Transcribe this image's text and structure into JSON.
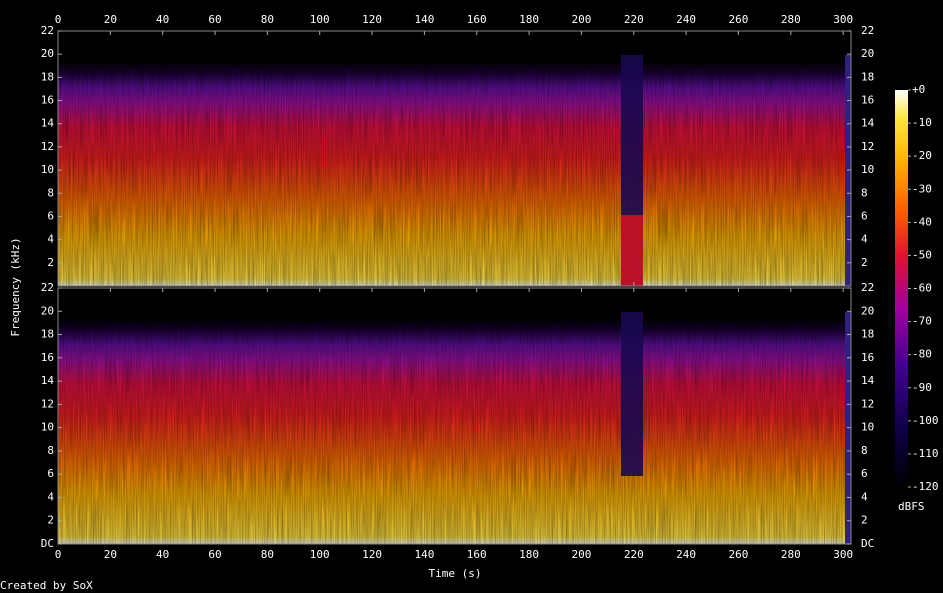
{
  "chart_data": {
    "type": "spectrogram",
    "x_label": "Time (s)",
    "y_label": "Frequency (kHz)",
    "footer": "Created by SoX",
    "xlim": [
      0,
      303
    ],
    "xticks": [
      0,
      20,
      40,
      60,
      80,
      100,
      120,
      140,
      160,
      180,
      200,
      220,
      240,
      260,
      280,
      300
    ],
    "panels": [
      {
        "ylim": [
          0,
          22
        ],
        "yticks": [
          2,
          4,
          6,
          8,
          10,
          12,
          14,
          16,
          18,
          20,
          22
        ]
      },
      {
        "ylim": [
          0,
          22
        ],
        "yticks": [
          {
            "value": 0,
            "label": "DC"
          },
          2,
          4,
          6,
          8,
          10,
          12,
          14,
          16,
          18,
          20,
          22
        ]
      }
    ],
    "colorbar": {
      "label": "dBFS",
      "lim": [
        -120,
        0
      ],
      "ticks": [
        {
          "value": 0,
          "label": "+0"
        },
        -10,
        -20,
        -30,
        -40,
        -50,
        -60,
        -70,
        -80,
        -90,
        -100,
        -110,
        -120
      ]
    }
  }
}
